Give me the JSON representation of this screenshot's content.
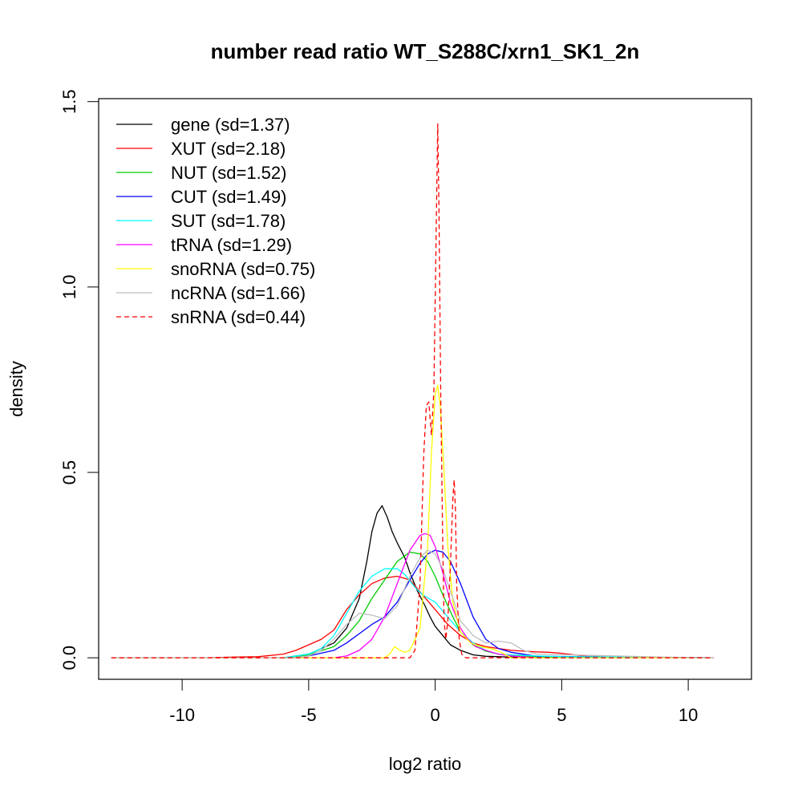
{
  "chart_data": {
    "type": "line",
    "title": "number read ratio WT_S288C/xrn1_SK1_2n",
    "xlabel": "log2 ratio",
    "ylabel": "density",
    "xlim": [
      -13.3,
      12.5
    ],
    "ylim": [
      -0.058,
      1.508
    ],
    "xticks": [
      -10,
      -5,
      0,
      5,
      10
    ],
    "yticks": [
      0.0,
      0.5,
      1.0,
      1.5
    ],
    "xtick_labels": [
      "-10",
      "-5",
      "0",
      "5",
      "10"
    ],
    "ytick_labels": [
      "0.0",
      "0.5",
      "1.0",
      "1.5"
    ],
    "grid": false,
    "legend_position": "top-left",
    "series": [
      {
        "name": "gene (sd=1.37)",
        "color": "#000000",
        "dash": false,
        "x": [
          -12.8,
          -6,
          -5,
          -4,
          -3.5,
          -3,
          -2.7,
          -2.5,
          -2.3,
          -2.1,
          -1.9,
          -1.7,
          -1.5,
          -1.2,
          -1,
          -0.7,
          -0.4,
          -0.2,
          0,
          0.3,
          0.6,
          1,
          1.5,
          2,
          2.5,
          3,
          5,
          11
        ],
        "y": [
          0,
          0,
          0.01,
          0.04,
          0.08,
          0.16,
          0.26,
          0.34,
          0.39,
          0.41,
          0.38,
          0.34,
          0.31,
          0.27,
          0.23,
          0.18,
          0.14,
          0.11,
          0.085,
          0.06,
          0.035,
          0.02,
          0.008,
          0.004,
          0.003,
          0.002,
          0,
          0
        ]
      },
      {
        "name": "XUT (sd=2.18)",
        "color": "#ff0000",
        "dash": false,
        "x": [
          -12.8,
          -9,
          -8,
          -7,
          -6,
          -5.5,
          -5,
          -4.5,
          -4,
          -3.5,
          -3,
          -2.5,
          -2,
          -1.5,
          -1,
          -0.5,
          0,
          0.5,
          1,
          1.5,
          2,
          2.5,
          3,
          3.5,
          4,
          4.5,
          5,
          5.5,
          6,
          7,
          8,
          11
        ],
        "y": [
          0,
          0,
          0.002,
          0.003,
          0.01,
          0.02,
          0.035,
          0.05,
          0.075,
          0.13,
          0.17,
          0.2,
          0.215,
          0.22,
          0.21,
          0.17,
          0.13,
          0.09,
          0.06,
          0.04,
          0.03,
          0.025,
          0.02,
          0.018,
          0.016,
          0.015,
          0.012,
          0.008,
          0.004,
          0.002,
          0,
          0
        ]
      },
      {
        "name": "NUT (sd=1.52)",
        "color": "#00cd00",
        "dash": false,
        "x": [
          -12.8,
          -6,
          -5,
          -4,
          -3.5,
          -3,
          -2.5,
          -2,
          -1.5,
          -1,
          -0.6,
          -0.3,
          0,
          0.3,
          0.7,
          1,
          1.5,
          2,
          2.5,
          3,
          4,
          11
        ],
        "y": [
          0,
          0,
          0.008,
          0.03,
          0.06,
          0.1,
          0.16,
          0.21,
          0.26,
          0.285,
          0.28,
          0.26,
          0.22,
          0.17,
          0.11,
          0.07,
          0.035,
          0.018,
          0.01,
          0.006,
          0.002,
          0
        ]
      },
      {
        "name": "CUT (sd=1.49)",
        "color": "#0000ff",
        "dash": false,
        "x": [
          -12.8,
          -5.5,
          -5,
          -4,
          -3.5,
          -3,
          -2.5,
          -2,
          -1.5,
          -1,
          -0.6,
          -0.3,
          0,
          0.3,
          0.6,
          1,
          1.5,
          2,
          2.5,
          3,
          4,
          11
        ],
        "y": [
          0,
          0,
          0.005,
          0.02,
          0.04,
          0.065,
          0.09,
          0.11,
          0.15,
          0.21,
          0.255,
          0.28,
          0.29,
          0.285,
          0.26,
          0.2,
          0.11,
          0.05,
          0.025,
          0.015,
          0.004,
          0
        ]
      },
      {
        "name": "SUT (sd=1.78)",
        "color": "#00ffff",
        "dash": false,
        "x": [
          -12.8,
          -6,
          -5,
          -4.5,
          -4,
          -3.5,
          -3,
          -2.5,
          -2,
          -1.5,
          -1.2,
          -0.8,
          -0.5,
          0,
          0.5,
          1,
          1.5,
          2,
          2.5,
          3,
          4,
          5,
          7.5,
          11
        ],
        "y": [
          0,
          0,
          0.01,
          0.025,
          0.06,
          0.12,
          0.18,
          0.22,
          0.24,
          0.24,
          0.225,
          0.19,
          0.17,
          0.15,
          0.11,
          0.07,
          0.04,
          0.02,
          0.01,
          0.008,
          0.005,
          0.003,
          0.002,
          0
        ]
      },
      {
        "name": "tRNA (sd=1.29)",
        "color": "#ff00ff",
        "dash": false,
        "x": [
          -12.8,
          -4,
          -3.5,
          -3,
          -2.5,
          -2,
          -1.5,
          -1,
          -0.6,
          -0.4,
          -0.2,
          0,
          0.3,
          0.6,
          1,
          1.3,
          1.6,
          2,
          2.5,
          3,
          4,
          11
        ],
        "y": [
          0,
          0,
          0.005,
          0.02,
          0.05,
          0.11,
          0.2,
          0.29,
          0.33,
          0.335,
          0.33,
          0.3,
          0.23,
          0.15,
          0.08,
          0.05,
          0.03,
          0.02,
          0.01,
          0.005,
          0,
          0
        ]
      },
      {
        "name": "snoRNA (sd=0.75)",
        "color": "#ffff00",
        "dash": false,
        "x": [
          -12.8,
          -2,
          -1.8,
          -1.6,
          -1.4,
          -1.2,
          -1,
          -0.6,
          -0.3,
          -0.15,
          0,
          0.1,
          0.2,
          0.35,
          0.5,
          0.7,
          1,
          1.4,
          1.8,
          2.2,
          2.6,
          3,
          11
        ],
        "y": [
          0,
          0,
          0.01,
          0.03,
          0.02,
          0.015,
          0.02,
          0.08,
          0.3,
          0.55,
          0.71,
          0.735,
          0.68,
          0.5,
          0.3,
          0.15,
          0.07,
          0.04,
          0.03,
          0.025,
          0.015,
          0,
          0
        ]
      },
      {
        "name": "ncRNA (sd=1.66)",
        "color": "#bebebe",
        "dash": false,
        "x": [
          -12.8,
          -5.5,
          -5,
          -4.5,
          -4,
          -3.5,
          -3,
          -2.5,
          -2,
          -1.5,
          -1,
          -0.6,
          -0.3,
          0,
          0.3,
          0.6,
          1,
          1.5,
          2,
          2.5,
          3,
          3.5,
          4,
          9,
          11
        ],
        "y": [
          0,
          0,
          0.005,
          0.02,
          0.05,
          0.09,
          0.12,
          0.115,
          0.105,
          0.14,
          0.22,
          0.27,
          0.29,
          0.28,
          0.24,
          0.18,
          0.1,
          0.06,
          0.04,
          0.045,
          0.04,
          0.02,
          0.01,
          0.002,
          0
        ]
      },
      {
        "name": "snRNA (sd=0.44)",
        "color": "#ff0000",
        "dash": true,
        "x": [
          -12.8,
          -1,
          -0.8,
          -0.6,
          -0.45,
          -0.35,
          -0.25,
          -0.15,
          -0.05,
          0.05,
          0.1,
          0.15,
          0.22,
          0.3,
          0.35,
          0.42,
          0.5,
          0.6,
          0.7,
          0.75,
          0.8,
          0.85,
          0.95,
          1.05,
          1.2,
          11
        ],
        "y": [
          0,
          0,
          0.02,
          0.2,
          0.55,
          0.68,
          0.69,
          0.6,
          0.72,
          1.2,
          1.44,
          1.2,
          0.7,
          0.3,
          0.1,
          0.05,
          0.1,
          0.25,
          0.43,
          0.48,
          0.4,
          0.2,
          0.05,
          0.01,
          0,
          0
        ]
      }
    ]
  }
}
